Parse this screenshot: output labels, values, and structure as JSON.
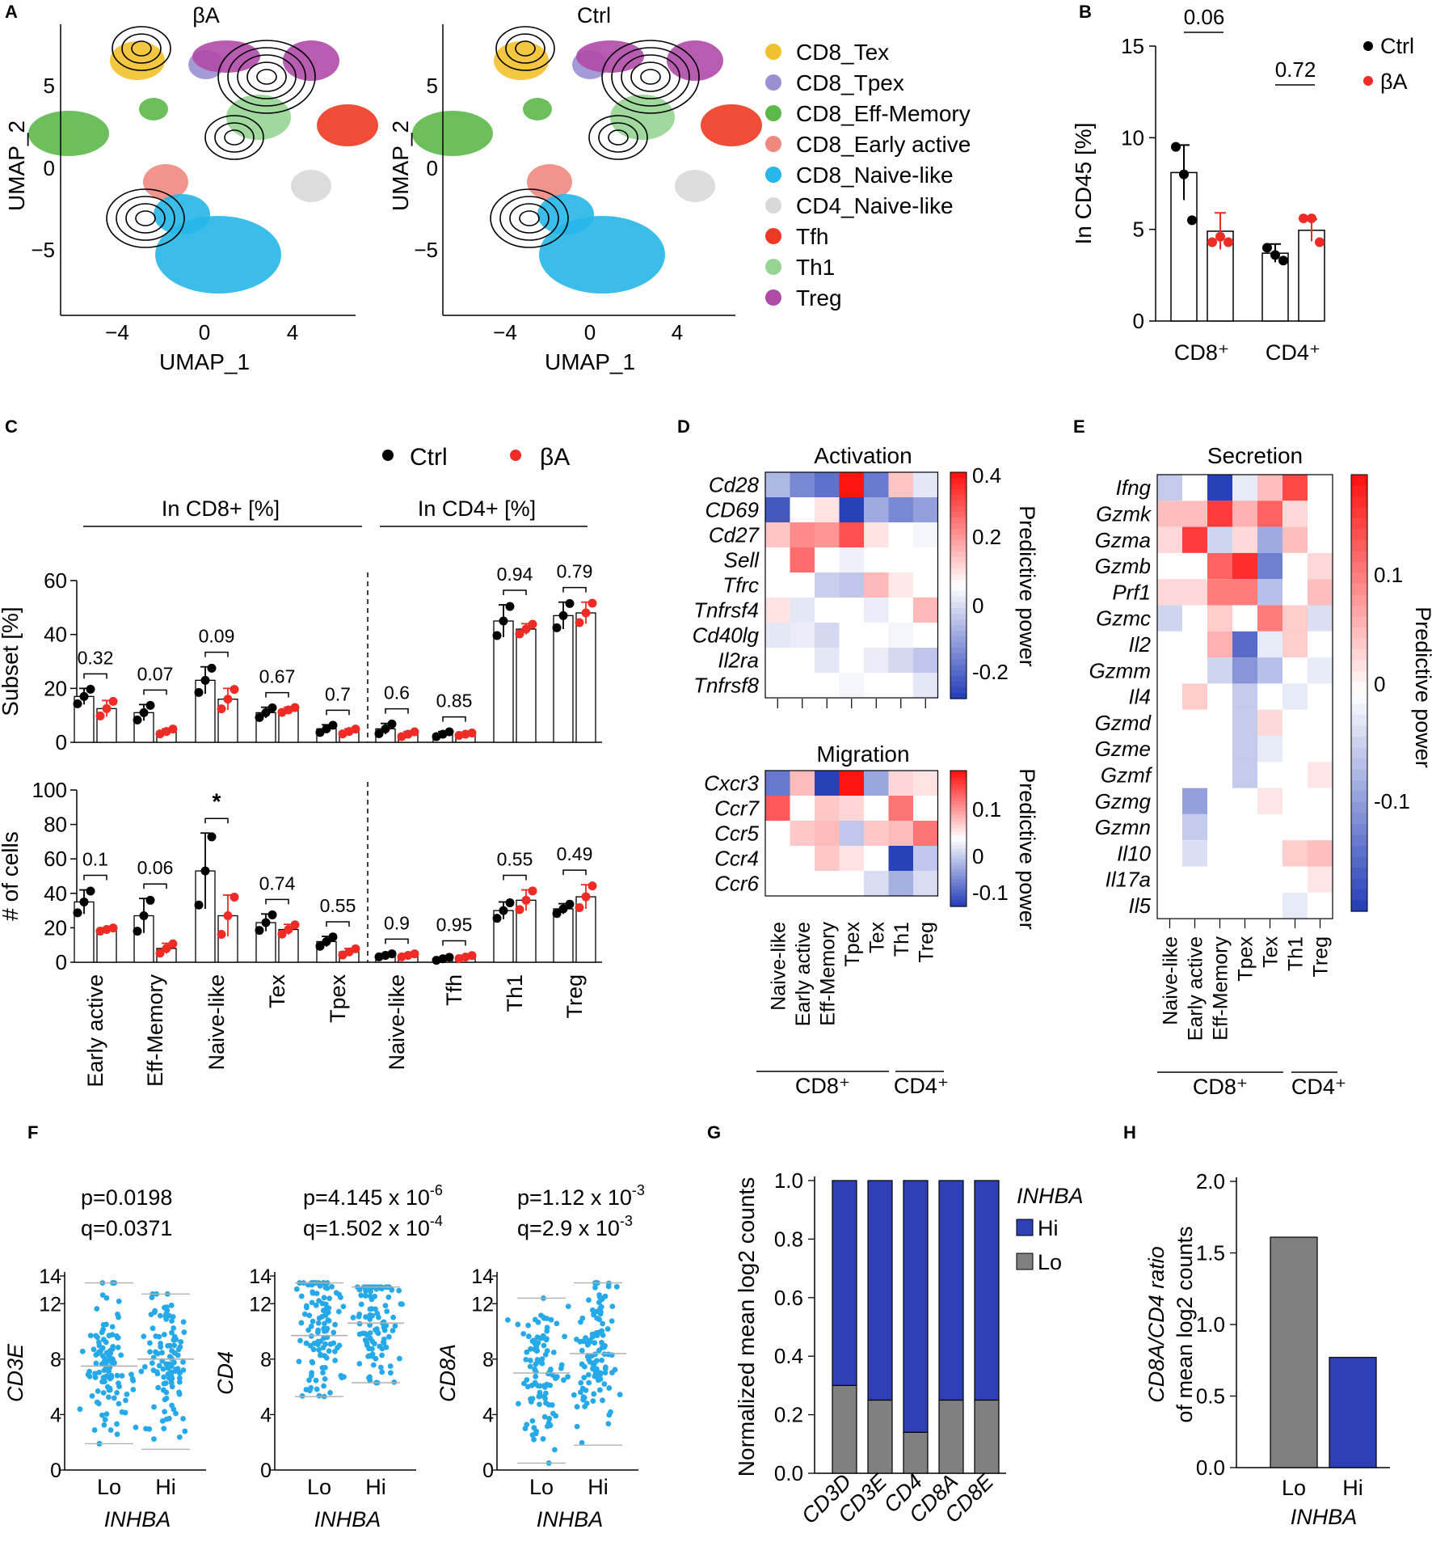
{
  "panel_letters": [
    "A",
    "B",
    "C",
    "D",
    "E",
    "F",
    "G",
    "H"
  ],
  "panelA": {
    "umaps": [
      {
        "title": "βA",
        "xlabel": "UMAP_1",
        "ylabel": "UMAP_2",
        "xticks": [
          "−4",
          "0",
          "4"
        ],
        "yticks": [
          "5",
          "0",
          "−5"
        ]
      },
      {
        "title": "Ctrl",
        "xlabel": "UMAP_1",
        "ylabel": "UMAP_2",
        "xticks": [
          "−4",
          "0",
          "4"
        ],
        "yticks": [
          "5",
          "0",
          "−5"
        ]
      }
    ],
    "legend": [
      {
        "label": "CD8_Tex",
        "color": "#f2c12e"
      },
      {
        "label": "CD8_Tpex",
        "color": "#9a8fd0"
      },
      {
        "label": "CD8_Eff-Memory",
        "color": "#5cb84a"
      },
      {
        "label": "CD8_Early active",
        "color": "#f08880"
      },
      {
        "label": "CD8_Naive-like",
        "color": "#26b6e8"
      },
      {
        "label": "CD4_Naive-like",
        "color": "#d8d8d8"
      },
      {
        "label": "Tfh",
        "color": "#ee3a24"
      },
      {
        "label": "Th1",
        "color": "#96d494"
      },
      {
        "label": "Treg",
        "color": "#b04aa8"
      }
    ]
  },
  "colors": {
    "ctrl": "#000000",
    "ba": "#ee2b24",
    "hi": "#2f3fb5",
    "lo": "#808080",
    "ci": "#26a9e8"
  },
  "chart_data": [
    {
      "id": "B",
      "type": "bar",
      "ylabel": "In CD45 [%]",
      "ylim": [
        0,
        15
      ],
      "yticks": [
        "0",
        "5",
        "10",
        "15"
      ],
      "categories": [
        "CD8⁺",
        "CD4⁺"
      ],
      "series": [
        {
          "name": "Ctrl",
          "values": [
            8.1,
            3.7
          ],
          "sem": [
            1.5,
            0.5
          ],
          "points": [
            [
              9.5,
              8.0,
              5.5
            ],
            [
              4.0,
              3.6,
              3.3
            ]
          ]
        },
        {
          "name": "βA",
          "values": [
            4.9,
            4.95
          ],
          "sem": [
            1.0,
            0.6
          ],
          "points": [
            [
              4.3,
              4.6,
              4.3
            ],
            [
              5.6,
              5.6,
              4.3
            ]
          ]
        }
      ],
      "pvalues": [
        "0.06",
        "0.72"
      ],
      "legend": [
        "Ctrl",
        "βA"
      ]
    },
    {
      "id": "C",
      "type": "bar",
      "legend": [
        "Ctrl",
        "βA"
      ],
      "group_labels": [
        "In CD8+ [%]",
        "In CD4+ [%]"
      ],
      "categories": [
        "Early active",
        "Eff-Memory",
        "Naive-like",
        "Tex",
        "Tpex",
        "Naive-like",
        "Tfh",
        "Th1",
        "Treg"
      ],
      "top": {
        "ylabel": "Subset [%]",
        "ylim": [
          0,
          60
        ],
        "yticks": [
          "0",
          "20",
          "40",
          "60"
        ],
        "ctrl": [
          17,
          11,
          23,
          11,
          5,
          5,
          3,
          45,
          47
        ],
        "ba": [
          12.5,
          4,
          16,
          12,
          4,
          3,
          3,
          42,
          48
        ],
        "ctrl_sem": [
          3,
          3,
          5,
          2,
          1.5,
          2,
          1,
          6,
          5
        ],
        "ba_sem": [
          3,
          1,
          4,
          1,
          1,
          1,
          0.5,
          2,
          4
        ],
        "pvalues": [
          "0.32",
          "0.07",
          "0.09",
          "0.67",
          "0.7",
          "0.6",
          "0.85",
          "0.94",
          "0.79"
        ]
      },
      "bottom": {
        "ylabel": "# of cells",
        "ylim": [
          0,
          100
        ],
        "yticks": [
          "0",
          "20",
          "40",
          "60",
          "80",
          "100"
        ],
        "ctrl": [
          35,
          27,
          53,
          23,
          12,
          4,
          2,
          30,
          31
        ],
        "ba": [
          19,
          8,
          27,
          19,
          6,
          4,
          3,
          36,
          38
        ],
        "ctrl_sem": [
          7,
          10,
          22,
          5,
          3,
          1,
          1,
          5,
          3
        ],
        "ba_sem": [
          1,
          3,
          12,
          3,
          2,
          1,
          1,
          6,
          7
        ],
        "pvalues": [
          "0.1",
          "0.06",
          "*",
          "0.74",
          "0.55",
          "0.9",
          "0.95",
          "0.55",
          "0.49"
        ]
      }
    },
    {
      "id": "D",
      "type": "heatmap",
      "columns": [
        "Naive-like",
        "Early active",
        "Eff-Memory",
        "Tpex",
        "Tex",
        "Th1",
        "Treg"
      ],
      "col_groups": [
        "CD8⁺",
        "CD4⁺"
      ],
      "activation": {
        "title": "Activation",
        "rows": [
          "Cd28",
          "CD69",
          "Cd27",
          "Sell",
          "Tfrc",
          "Tnfrsf4",
          "Cd40lg",
          "Il2ra",
          "Tnfrsf8"
        ],
        "values": [
          [
            -0.15,
            -0.25,
            -0.3,
            0.4,
            -0.28,
            0.1,
            -0.05
          ],
          [
            -0.35,
            0,
            0.05,
            -0.4,
            -0.18,
            -0.25,
            -0.2
          ],
          [
            0.1,
            0.2,
            0.18,
            0.3,
            0.05,
            0,
            -0.02
          ],
          [
            0,
            0.25,
            0,
            -0.03,
            0,
            0,
            0
          ],
          [
            0,
            0,
            -0.1,
            -0.12,
            0.12,
            0.04,
            0
          ],
          [
            0.05,
            -0.05,
            0,
            0,
            -0.04,
            0,
            0.12
          ],
          [
            -0.05,
            -0.04,
            -0.08,
            0,
            0,
            -0.02,
            0
          ],
          [
            0,
            0,
            -0.05,
            0,
            -0.04,
            -0.08,
            -0.12
          ],
          [
            0,
            0,
            0,
            -0.02,
            0,
            0,
            -0.05
          ]
        ],
        "cbar_ticks": [
          "0.4",
          "0.2",
          "0",
          "-0.2"
        ],
        "cbar_label": "Predictive power"
      },
      "migration": {
        "title": "Migration",
        "rows": [
          "Cxcr3",
          "Ccr7",
          "Ccr5",
          "Ccr4",
          "Ccr6"
        ],
        "values": [
          [
            -0.12,
            0.05,
            -0.2,
            0.18,
            -0.08,
            0.03,
            0.02
          ],
          [
            0.12,
            0,
            0.04,
            0.03,
            0,
            0.1,
            0
          ],
          [
            0,
            0.04,
            0.05,
            -0.05,
            0.04,
            0.05,
            0.1
          ],
          [
            0,
            0,
            0.04,
            0.02,
            0,
            -0.17,
            -0.05
          ],
          [
            0,
            0,
            0,
            0,
            -0.03,
            -0.07,
            -0.03
          ]
        ],
        "cbar_ticks": [
          "0.1",
          "0",
          "-0.1"
        ],
        "cbar_label": "Predictive power"
      }
    },
    {
      "id": "E",
      "type": "heatmap",
      "title": "Secretion",
      "columns": [
        "Naive-like",
        "Early active",
        "Eff-Memory",
        "Tpex",
        "Tex",
        "Th1",
        "Treg"
      ],
      "col_groups": [
        "CD8⁺",
        "CD4⁺"
      ],
      "rows": [
        "Ifng",
        "Gzmk",
        "Gzma",
        "Gzmb",
        "Prf1",
        "Gzmc",
        "Il2",
        "Gzmm",
        "Il4",
        "Gzmd",
        "Gzme",
        "Gzmf",
        "Gzmg",
        "Gzmn",
        "Il10",
        "Il17a",
        "Il5"
      ],
      "values": [
        [
          -0.05,
          0,
          -0.18,
          -0.02,
          0.05,
          0.14,
          0
        ],
        [
          0.05,
          0.05,
          0.15,
          0.06,
          0.12,
          0.03,
          0
        ],
        [
          0.03,
          0.15,
          -0.04,
          0.03,
          -0.08,
          0.05,
          0
        ],
        [
          0,
          0,
          0.12,
          0.16,
          -0.12,
          0,
          0.03
        ],
        [
          0.03,
          0.03,
          0.1,
          0.1,
          -0.06,
          0,
          0.05
        ],
        [
          -0.04,
          0,
          0.04,
          0,
          0.1,
          0.04,
          -0.03
        ],
        [
          0,
          0,
          0.06,
          -0.14,
          -0.02,
          0.04,
          0
        ],
        [
          0,
          0,
          -0.04,
          -0.1,
          -0.06,
          0,
          -0.02
        ],
        [
          0,
          0.04,
          0,
          -0.05,
          0,
          -0.02,
          0
        ],
        [
          0,
          0,
          0,
          -0.05,
          0.03,
          0,
          0
        ],
        [
          0,
          0,
          0,
          -0.05,
          -0.02,
          0,
          0
        ],
        [
          0,
          0,
          0,
          -0.05,
          0,
          0,
          0.02
        ],
        [
          0,
          -0.09,
          0,
          0,
          0.02,
          0,
          0
        ],
        [
          0,
          -0.05,
          0,
          0,
          0,
          0,
          0
        ],
        [
          0,
          -0.03,
          0,
          0,
          0,
          0.04,
          0.05
        ],
        [
          0,
          0,
          0,
          0,
          0,
          0,
          0.02
        ],
        [
          0,
          0,
          0,
          0,
          0,
          -0.02,
          0
        ]
      ],
      "cbar_ticks": [
        "0.1",
        "0",
        "-0.1"
      ],
      "cbar_label": "Predictive power"
    },
    {
      "id": "F",
      "type": "scatter",
      "xlabel": "INHBA",
      "groups": [
        "Lo",
        "Hi"
      ],
      "panels": [
        {
          "gene": "CD3E",
          "p": "p=0.0198",
          "q": "q=0.0371",
          "ylim": [
            0,
            14
          ],
          "yticks": [
            "0",
            "4",
            "8",
            "12",
            "14"
          ],
          "medians": [
            7.5,
            8.0
          ],
          "ranges": [
            [
              1.9,
              13.5
            ],
            [
              1.5,
              12.7
            ]
          ]
        },
        {
          "gene": "CD4",
          "p": "p=4.145 x 10",
          "p_exp": "-6",
          "q": "q=1.502 x 10",
          "q_exp": "-4",
          "ylim": [
            0,
            14
          ],
          "yticks": [
            "0",
            "4",
            "8",
            "12",
            "14"
          ],
          "medians": [
            9.7,
            10.6
          ],
          "ranges": [
            [
              5.3,
              13.5
            ],
            [
              6.3,
              13.2
            ]
          ]
        },
        {
          "gene": "CD8A",
          "p": "p=1.12 x 10",
          "p_exp": "-3",
          "q": "q=2.9 x 10",
          "q_exp": "-3",
          "ylim": [
            0,
            14
          ],
          "yticks": [
            "0",
            "4",
            "8",
            "12",
            "14"
          ],
          "medians": [
            7.0,
            8.4
          ],
          "ranges": [
            [
              0.5,
              12.4
            ],
            [
              1.8,
              13.5
            ]
          ]
        }
      ]
    },
    {
      "id": "G",
      "type": "bar",
      "stacked": true,
      "ylabel": "Normalized mean log2 counts",
      "ylim": [
        0,
        1
      ],
      "yticks": [
        "0.0",
        "0.2",
        "0.4",
        "0.6",
        "0.8",
        "1.0"
      ],
      "categories": [
        "CD3D",
        "CD3E",
        "CD4",
        "CD8A",
        "CD8E"
      ],
      "series": [
        {
          "name": "Lo",
          "values": [
            0.3,
            0.25,
            0.14,
            0.25,
            0.25
          ]
        },
        {
          "name": "Hi",
          "values": [
            0.7,
            0.75,
            0.86,
            0.75,
            0.75
          ]
        }
      ],
      "legend_title": "INHBA",
      "legend": [
        "Hi",
        "Lo"
      ]
    },
    {
      "id": "H",
      "type": "bar",
      "ylabel_1": "CD8A/CD4 ratio",
      "ylabel_2": "of mean log2 counts",
      "xlabel": "INHBA",
      "ylim": [
        0,
        2
      ],
      "yticks": [
        "0.0",
        "0.5",
        "1.0",
        "1.5",
        "2.0"
      ],
      "categories": [
        "Lo",
        "Hi"
      ],
      "values": [
        1.61,
        0.77
      ]
    }
  ]
}
